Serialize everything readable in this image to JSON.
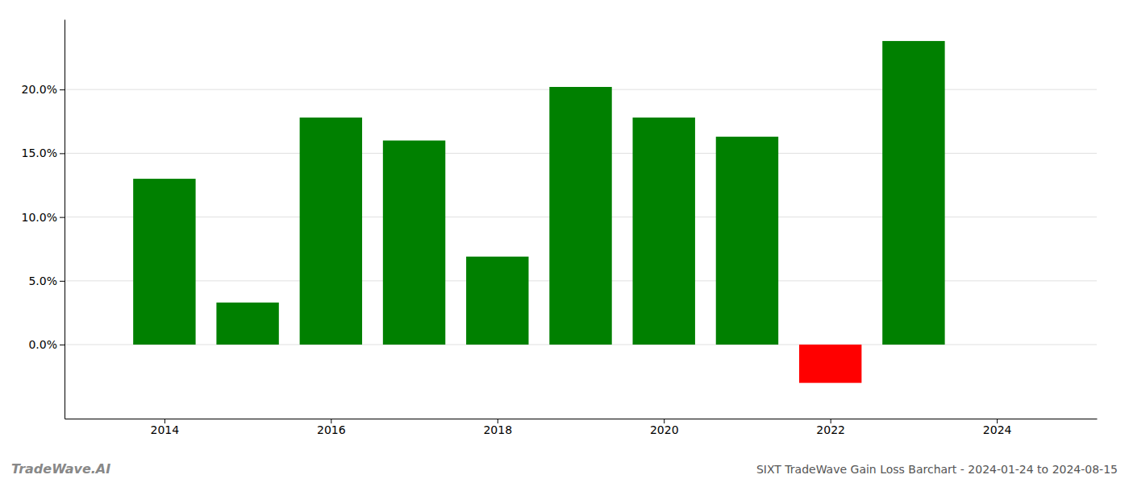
{
  "chart_data": {
    "type": "bar",
    "title": "SIXT TradeWave Gain Loss Barchart - 2024-01-24 to 2024-08-15",
    "annotations": [
      "TradeWave.AI"
    ],
    "x": [
      2014,
      2015,
      2016,
      2017,
      2018,
      2019,
      2020,
      2021,
      2022,
      2023
    ],
    "values": [
      0.13,
      0.033,
      0.178,
      0.16,
      0.069,
      0.202,
      0.178,
      0.163,
      -0.03,
      0.238
    ],
    "colors": [
      "#008000",
      "#008000",
      "#008000",
      "#008000",
      "#008000",
      "#008000",
      "#008000",
      "#008000",
      "#ff0000",
      "#008000"
    ],
    "xlim": [
      2012.8,
      2025.2
    ],
    "xticks": [
      2014,
      2016,
      2018,
      2020,
      2022,
      2024
    ],
    "ylim": [
      -0.058,
      0.255
    ],
    "yticks": [
      {
        "value": 0.0,
        "label": "0.0%"
      },
      {
        "value": 0.05,
        "label": "5.0%"
      },
      {
        "value": 0.1,
        "label": "10.0%"
      },
      {
        "value": 0.15,
        "label": "15.0%"
      },
      {
        "value": 0.2,
        "label": "20.0%"
      }
    ],
    "grid": true
  }
}
